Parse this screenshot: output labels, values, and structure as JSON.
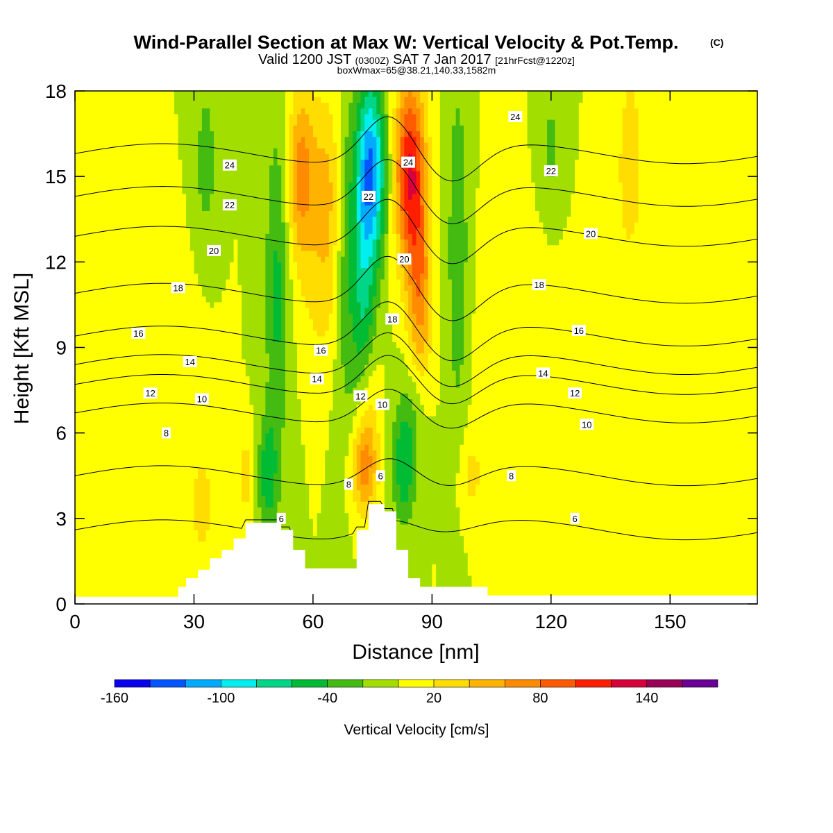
{
  "header": {
    "title": "Wind-Parallel Section at Max W: Vertical Velocity & Pot.Temp.",
    "title_mark": "(C)",
    "subtitle_parts": {
      "a": "Valid 1200 JST ",
      "b": "(0300Z)",
      "c": " SAT 7 Jan 2017 ",
      "d": "[21hrFcst@1220z]"
    },
    "subtitle2": "boxWmax=65@38.21,140.33,1582m"
  },
  "chart_data": {
    "type": "contour",
    "xlabel": "Distance [nm]",
    "ylabel": "Height [Kft MSL]",
    "xlim": [
      0,
      172
    ],
    "ylim": [
      0,
      18
    ],
    "x_ticks": [
      0,
      30,
      60,
      90,
      120,
      150
    ],
    "y_ticks": [
      0,
      3,
      6,
      9,
      12,
      15,
      18
    ],
    "colorbar": {
      "title": "Vertical Velocity [cm/s]",
      "labels": [
        -160,
        -100,
        -40,
        20,
        80,
        140
      ],
      "levels": [
        -160,
        -140,
        -120,
        -100,
        -80,
        -60,
        -40,
        -20,
        0,
        20,
        40,
        60,
        80,
        100,
        120,
        140,
        160,
        180
      ],
      "colors": [
        "#0a00f0",
        "#0055ff",
        "#00aaff",
        "#00eeee",
        "#00d588",
        "#00bb33",
        "#44bb11",
        "#a2df00",
        "#ffff00",
        "#ffdd00",
        "#ffb300",
        "#ff8c00",
        "#ff5a00",
        "#ff1f00",
        "#d8003a",
        "#990055",
        "#6a0095"
      ]
    },
    "background_band": "#a2df00",
    "terrain_profile": {
      "x": [
        0,
        26,
        26,
        28,
        28,
        31,
        31,
        34,
        34,
        37,
        37,
        40,
        40,
        43,
        43,
        48,
        48,
        52,
        52,
        55,
        55,
        58,
        58,
        71,
        71,
        74,
        74,
        78,
        78,
        81,
        81,
        84,
        84,
        87,
        87,
        90,
        90,
        104,
        104,
        172
      ],
      "y": [
        0.25,
        0.25,
        0.6,
        0.6,
        0.9,
        0.9,
        1.2,
        1.2,
        1.6,
        1.6,
        1.9,
        1.9,
        2.3,
        2.3,
        2.85,
        2.85,
        2.85,
        2.85,
        2.6,
        2.6,
        1.9,
        1.9,
        1.25,
        1.25,
        2.6,
        2.6,
        3.5,
        3.5,
        3.25,
        3.25,
        1.9,
        1.9,
        0.9,
        0.9,
        0.6,
        0.6,
        0.6,
        0.6,
        0.3,
        0.3
      ]
    },
    "wind_features": [
      {
        "x": 74.5,
        "xw": 3.8,
        "y": 15.2,
        "yw": 3.2,
        "value": -120
      },
      {
        "x": 72.5,
        "xw": 3.2,
        "y": 10.5,
        "yw": 4.0,
        "value": -55
      },
      {
        "x": 84.5,
        "xw": 3.8,
        "y": 15.2,
        "yw": 3.4,
        "value": 120
      },
      {
        "x": 87.0,
        "xw": 3.0,
        "y": 10.8,
        "yw": 3.2,
        "value": 65
      },
      {
        "x": 63.5,
        "xw": 4.0,
        "y": 14.5,
        "yw": 3.4,
        "value": 45
      },
      {
        "x": 57.0,
        "xw": 3.5,
        "y": 15.0,
        "yw": 3.0,
        "value": 70
      },
      {
        "x": 62.0,
        "xw": 5.0,
        "y": 10.5,
        "yw": 2.5,
        "value": 20
      },
      {
        "x": 73.0,
        "xw": 3.2,
        "y": 4.8,
        "yw": 1.6,
        "value": 70
      },
      {
        "x": 74.0,
        "xw": 3.0,
        "y": 7.0,
        "yw": 2.0,
        "value": 30
      },
      {
        "x": 83.0,
        "xw": 3.0,
        "y": 4.8,
        "yw": 2.0,
        "value": -55
      },
      {
        "x": 85.0,
        "xw": 4.0,
        "y": 7.0,
        "yw": 2.0,
        "value": -20
      },
      {
        "x": 51.0,
        "xw": 3.0,
        "y": 11.0,
        "yw": 6.0,
        "value": -45
      },
      {
        "x": 48.5,
        "xw": 2.5,
        "y": 4.5,
        "yw": 2.0,
        "value": -50
      },
      {
        "x": 68.0,
        "xw": 2.5,
        "y": 12.0,
        "yw": 6.0,
        "value": -30
      },
      {
        "x": 96.5,
        "xw": 2.5,
        "y": 12.5,
        "yw": 6.0,
        "value": -40
      },
      {
        "x": 33.0,
        "xw": 2.5,
        "y": 15.5,
        "yw": 2.5,
        "value": -35
      },
      {
        "x": 23.0,
        "xw": 6.5,
        "y": 8.5,
        "yw": 3.0,
        "value": 15
      },
      {
        "x": 113.0,
        "xw": 10.0,
        "y": 8.5,
        "yw": 4.5,
        "value": 15
      },
      {
        "x": 120.0,
        "xw": 3.0,
        "y": 16.0,
        "yw": 2.5,
        "value": -25
      },
      {
        "x": 140.0,
        "xw": 3.0,
        "y": 15.5,
        "yw": 3.0,
        "value": 40
      },
      {
        "x": 135.0,
        "xw": 4.0,
        "y": 11.0,
        "yw": 2.5,
        "value": 15
      },
      {
        "x": 32.0,
        "xw": 2.5,
        "y": 3.5,
        "yw": 1.8,
        "value": 35
      },
      {
        "x": 43.0,
        "xw": 2.0,
        "y": 4.5,
        "yw": 1.5,
        "value": 30
      },
      {
        "x": 100.0,
        "xw": 3.0,
        "y": 4.5,
        "yw": 1.5,
        "value": 25
      },
      {
        "x": 161.0,
        "xw": 2.5,
        "y": 5.0,
        "yw": 3.0,
        "value": 10
      },
      {
        "x": 159.0,
        "xw": 2.0,
        "y": 15.0,
        "yw": 1.8,
        "value": 15
      }
    ],
    "isentropes": [
      {
        "label": "6",
        "base": 2.6,
        "ridge": 0.55,
        "trough": 0.25
      },
      {
        "label": "8",
        "base": 4.5,
        "ridge": 0.85,
        "trough": 0.55
      },
      {
        "label": "10",
        "base": 6.7,
        "ridge": 1.1,
        "trough": 0.75
      },
      {
        "label": "12",
        "base": 7.7,
        "ridge": 1.3,
        "trough": 0.9
      },
      {
        "label": "14",
        "base": 8.4,
        "ridge": 1.4,
        "trough": 1.0
      },
      {
        "label": "16",
        "base": 9.4,
        "ridge": 1.5,
        "trough": 1.1
      },
      {
        "label": "18",
        "base": 10.9,
        "ridge": 1.6,
        "trough": 1.2
      },
      {
        "label": "20",
        "base": 12.9,
        "ridge": 1.6,
        "trough": 1.2
      },
      {
        "label": "22",
        "base": 14.3,
        "ridge": 1.6,
        "trough": 1.2
      },
      {
        "label": "24",
        "base": 15.8,
        "ridge": 1.6,
        "trough": 1.2
      }
    ],
    "contour_label_positions": [
      {
        "label": "24",
        "x": 39.0,
        "y": 15.4
      },
      {
        "label": "22",
        "x": 39.0,
        "y": 14.0
      },
      {
        "label": "20",
        "x": 35.0,
        "y": 12.4
      },
      {
        "label": "18",
        "x": 26.0,
        "y": 11.1
      },
      {
        "label": "16",
        "x": 16.0,
        "y": 9.5
      },
      {
        "label": "14",
        "x": 29.0,
        "y": 8.5
      },
      {
        "label": "12",
        "x": 19.0,
        "y": 7.4
      },
      {
        "label": "10",
        "x": 32.0,
        "y": 7.2
      },
      {
        "label": "8",
        "x": 23.0,
        "y": 6.0
      },
      {
        "label": "16",
        "x": 62.0,
        "y": 8.9
      },
      {
        "label": "14",
        "x": 61.0,
        "y": 7.9
      },
      {
        "label": "12",
        "x": 72.0,
        "y": 7.3
      },
      {
        "label": "10",
        "x": 77.5,
        "y": 7.0
      },
      {
        "label": "8",
        "x": 69.0,
        "y": 4.2
      },
      {
        "label": "6",
        "x": 77.0,
        "y": 4.5
      },
      {
        "label": "6",
        "x": 52.0,
        "y": 3.0
      },
      {
        "label": "22",
        "x": 74.0,
        "y": 14.3
      },
      {
        "label": "20",
        "x": 83.0,
        "y": 12.1
      },
      {
        "label": "18",
        "x": 80.0,
        "y": 10.0
      },
      {
        "label": "24",
        "x": 84.0,
        "y": 15.5
      },
      {
        "label": "24",
        "x": 111.0,
        "y": 17.1
      },
      {
        "label": "22",
        "x": 120.0,
        "y": 15.2
      },
      {
        "label": "20",
        "x": 130.0,
        "y": 13.0
      },
      {
        "label": "18",
        "x": 117.0,
        "y": 11.2
      },
      {
        "label": "16",
        "x": 127.0,
        "y": 9.6
      },
      {
        "label": "14",
        "x": 118.0,
        "y": 8.1
      },
      {
        "label": "12",
        "x": 126.0,
        "y": 7.4
      },
      {
        "label": "10",
        "x": 129.0,
        "y": 6.3
      },
      {
        "label": "8",
        "x": 110.0,
        "y": 4.5
      },
      {
        "label": "6",
        "x": 126.0,
        "y": 3.0
      }
    ]
  }
}
